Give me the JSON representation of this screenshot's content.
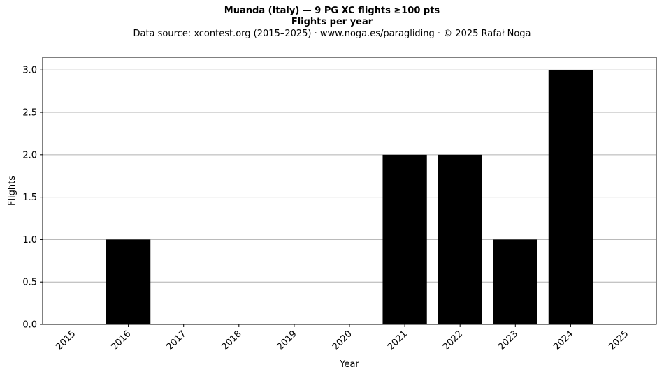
{
  "chart_data": {
    "type": "bar",
    "title": "Muanda (Italy)  —  9 PG XC flights ≥100 pts",
    "subtitle": "Flights per year",
    "source_note": "Data source: xcontest.org (2015–2025)  ·  www.noga.es/paragliding  ·  © 2025 Rafał Noga",
    "xlabel": "Year",
    "ylabel": "Flights",
    "categories": [
      "2015",
      "2016",
      "2017",
      "2018",
      "2019",
      "2020",
      "2021",
      "2022",
      "2023",
      "2024",
      "2025"
    ],
    "values": [
      0,
      1,
      0,
      0,
      0,
      0,
      2,
      2,
      1,
      3,
      0
    ],
    "ylim": [
      0,
      3.15
    ],
    "yticks": [
      "0.0",
      "0.5",
      "1.0",
      "1.5",
      "2.0",
      "2.5",
      "3.0"
    ],
    "grid": "horizontal",
    "bar_color": "#000000",
    "grid_color": "#b0b0b0"
  }
}
